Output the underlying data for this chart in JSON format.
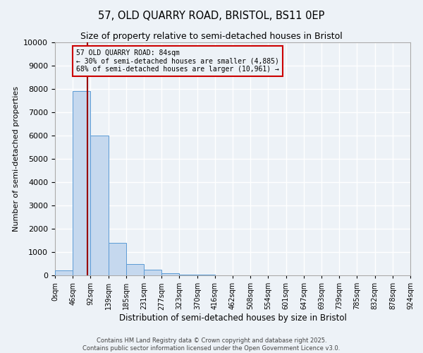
{
  "title": "57, OLD QUARRY ROAD, BRISTOL, BS11 0EP",
  "subtitle": "Size of property relative to semi-detached houses in Bristol",
  "xlabel": "Distribution of semi-detached houses by size in Bristol",
  "ylabel": "Number of semi-detached properties",
  "bin_edges": [
    0,
    46,
    92,
    139,
    185,
    231,
    277,
    323,
    370,
    416,
    462,
    508,
    554,
    601,
    647,
    693,
    739,
    785,
    832,
    878,
    924
  ],
  "counts": [
    200,
    7900,
    6000,
    1400,
    490,
    250,
    100,
    45,
    20,
    10,
    5,
    3,
    2,
    2,
    1,
    1,
    1,
    0,
    0,
    0
  ],
  "property_size": 84,
  "property_label": "57 OLD QUARRY ROAD: 84sqm",
  "smaller_pct": "30%",
  "smaller_count": 4885,
  "larger_pct": "68%",
  "larger_count": 10961,
  "bar_color": "#c5d8ee",
  "bar_edge_color": "#5b9bd5",
  "vline_color": "#990000",
  "annotation_box_color": "#cc0000",
  "background_color": "#edf2f7",
  "grid_color": "#ffffff",
  "ylim": [
    0,
    10000
  ],
  "yticks": [
    0,
    1000,
    2000,
    3000,
    4000,
    5000,
    6000,
    7000,
    8000,
    9000,
    10000
  ],
  "footer_line1": "Contains HM Land Registry data © Crown copyright and database right 2025.",
  "footer_line2": "Contains public sector information licensed under the Open Government Licence v3.0."
}
